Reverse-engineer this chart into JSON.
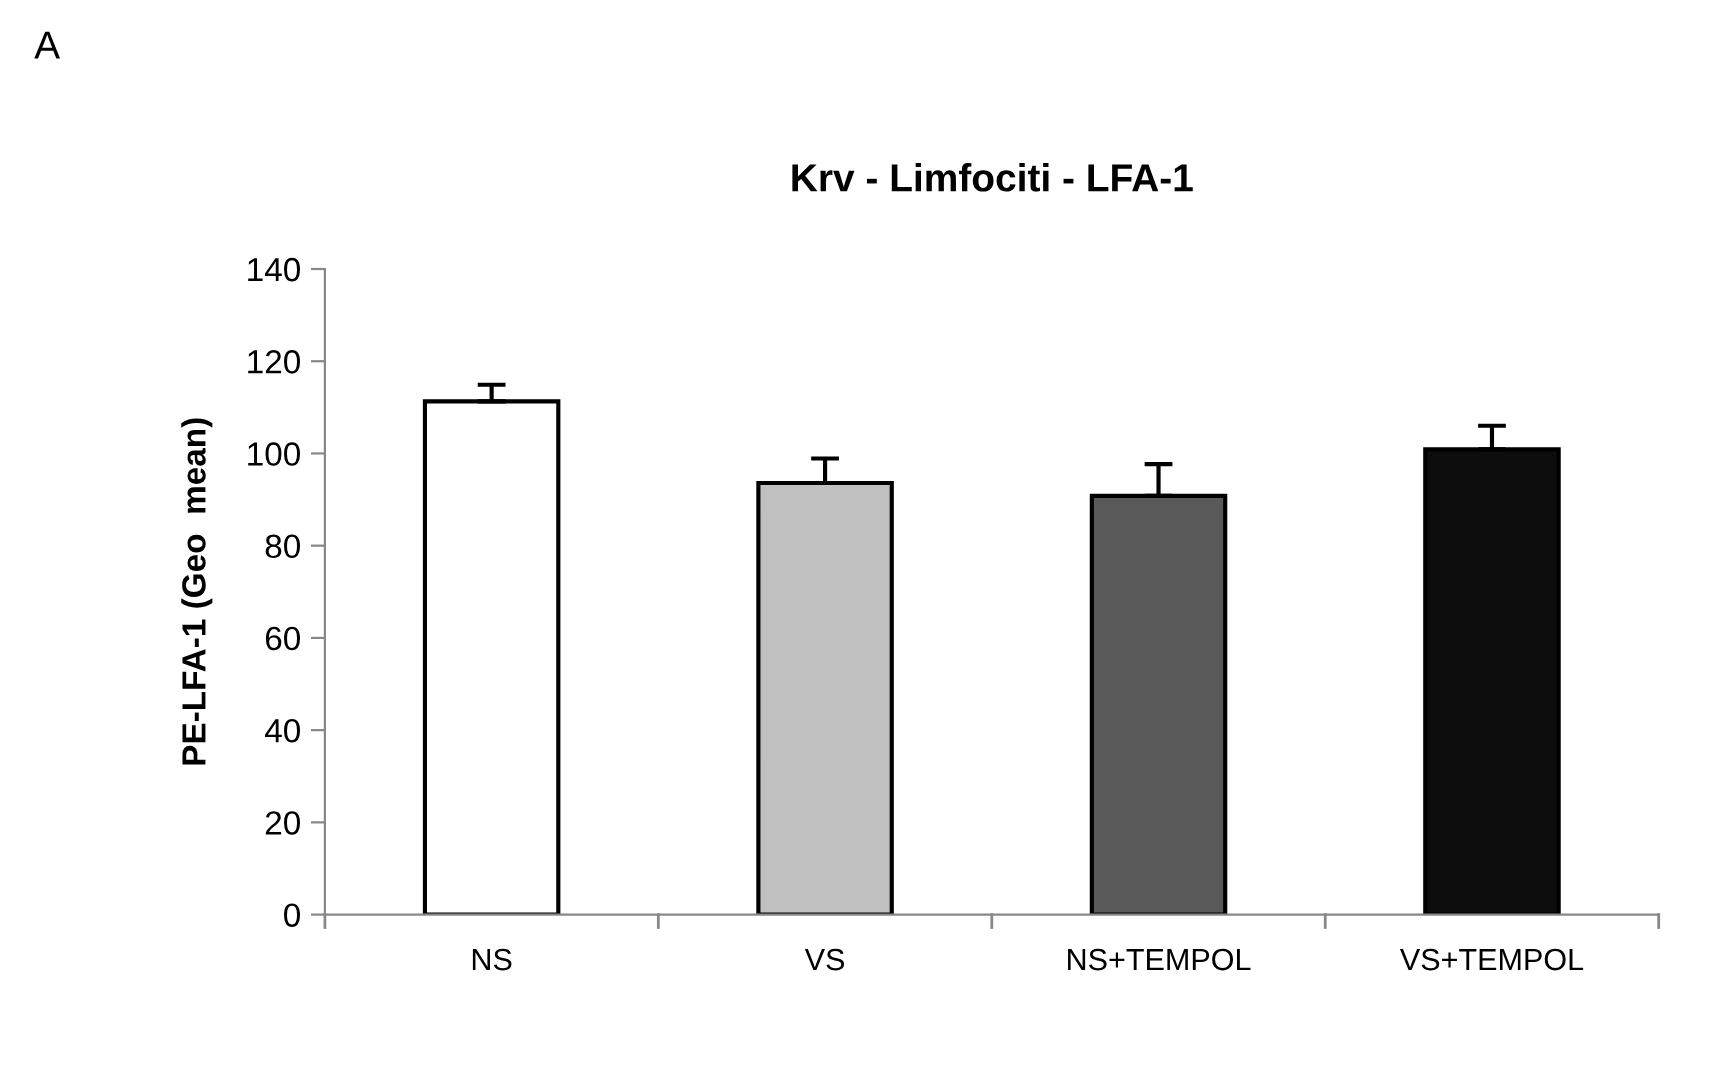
{
  "chart_data": {
    "type": "bar",
    "title": "Krv - Limfociti - LFA-1",
    "ylabel": "PE-LFA-1 (Geo  mean)",
    "annotations": [
      "A"
    ],
    "categories": [
      "NS",
      "VS",
      "NS+TEMPOL",
      "VS+TEMPOL"
    ],
    "values": [
      111.3,
      93.6,
      90.8,
      100.9
    ],
    "colors": [
      "#ffffff",
      "#c0c0c0",
      "#595959",
      "#0d0d0d"
    ],
    "errors": [
      [
        111.3,
        114.9
      ],
      [
        93.6,
        98.9
      ],
      [
        90.8,
        97.7
      ],
      [
        100.9,
        106
      ]
    ],
    "ylim": [
      0,
      140
    ],
    "yticks": [
      0,
      20,
      40,
      60,
      80,
      100,
      120,
      140
    ],
    "grid": false,
    "legend": false
  }
}
